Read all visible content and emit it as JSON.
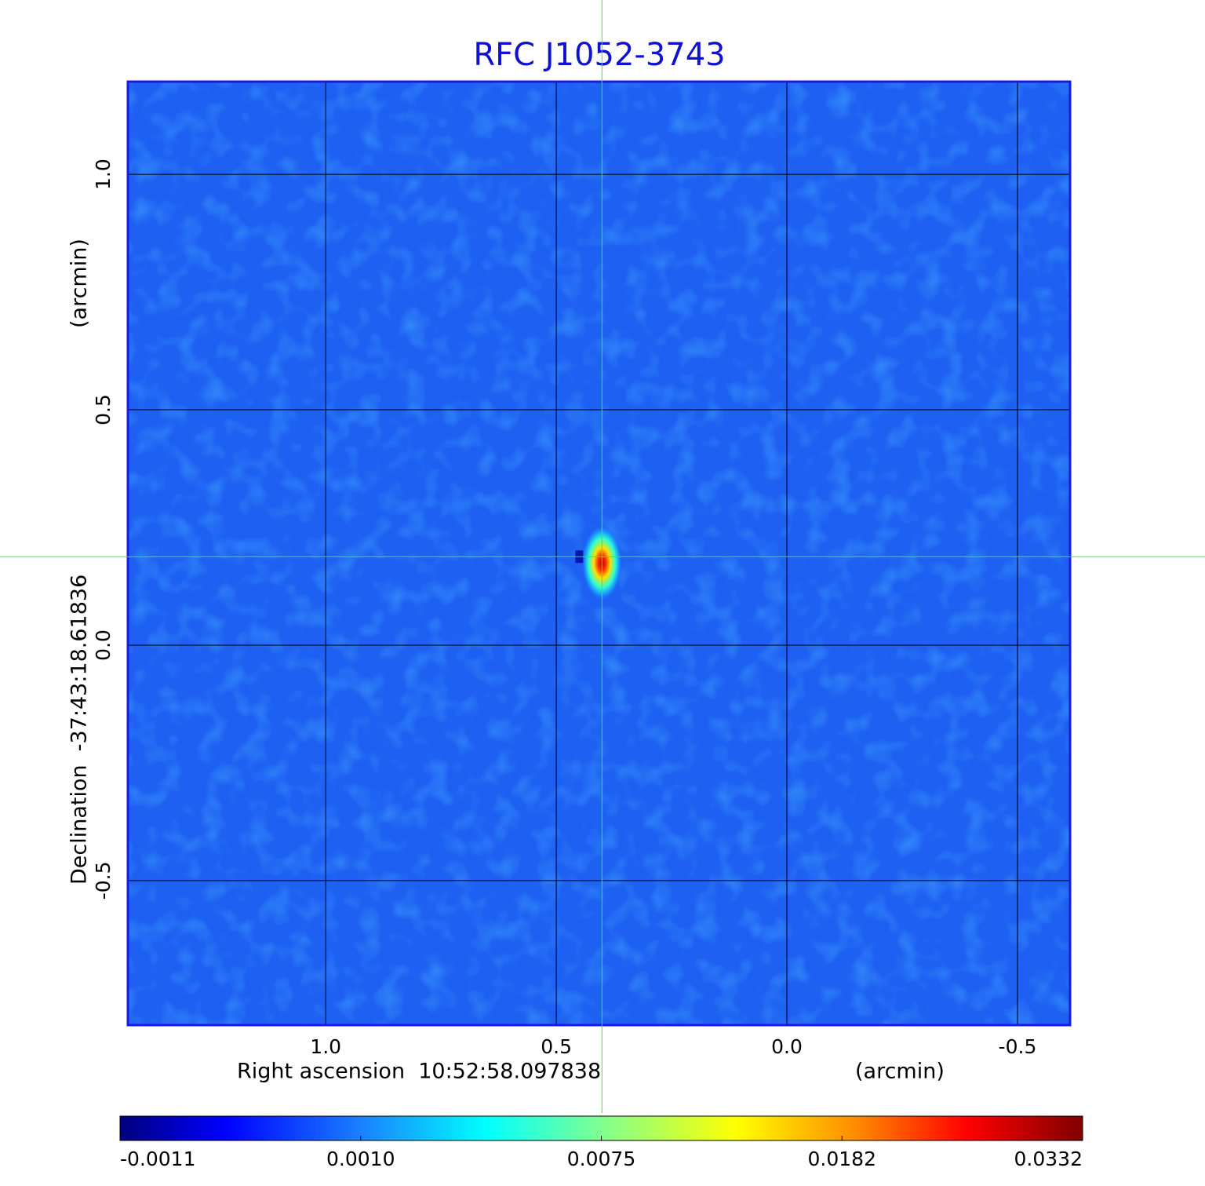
{
  "chart_data": {
    "type": "image",
    "title": "RFC J1052-3743",
    "x_label": "Right ascension  10:52:58.097838",
    "x_unit": "(arcmin)",
    "y_label": "Declination  -37:43:18.61836",
    "y_unit": "(arcmin)",
    "xlim": [
      1.429,
      -0.614
    ],
    "ylim": [
      -0.807,
      1.197
    ],
    "xticks": [
      {
        "value": 1,
        "label": "1.0"
      },
      0.5,
      {
        "value": 0,
        "label": "0.0"
      },
      -0.5
    ],
    "yticks": [
      {
        "value": 1,
        "label": "1.0"
      },
      0.5,
      {
        "value": 0,
        "label": "0.0"
      },
      -0.5
    ],
    "grid": true,
    "source": {
      "x": 0.401,
      "y": 0.188
    },
    "colormap": "jet",
    "colorbar": {
      "ticks": [
        -0.0011,
        {
          "value": 0.001,
          "label": "0.0010"
        },
        0.0075,
        0.0182,
        0.0332
      ]
    }
  }
}
